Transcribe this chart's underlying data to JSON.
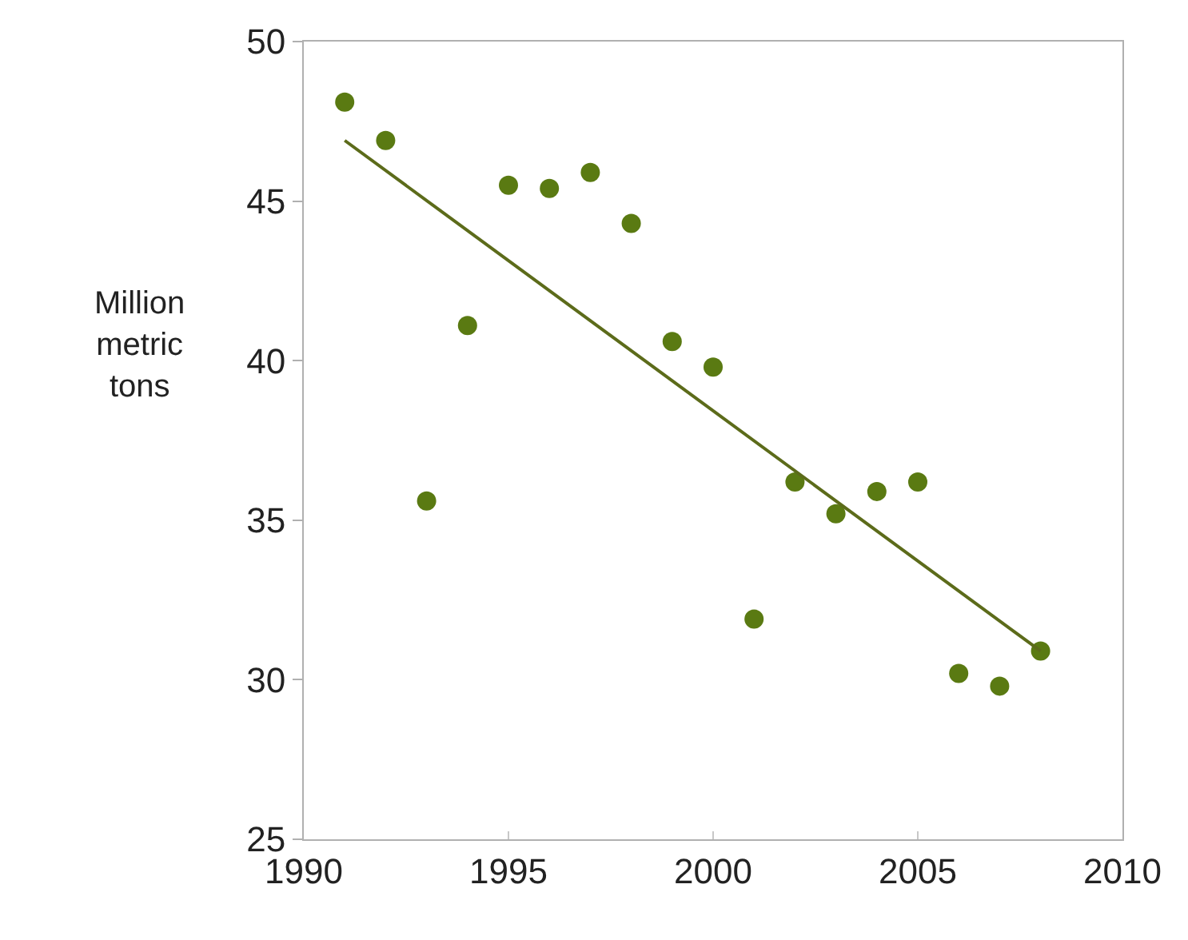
{
  "chart_data": {
    "type": "scatter",
    "ylabel": "Million\nmetric\ntons",
    "x": [
      1991,
      1992,
      1993,
      1994,
      1995,
      1996,
      1997,
      1998,
      1999,
      2000,
      2001,
      2002,
      2003,
      2004,
      2005,
      2006,
      2007,
      2008
    ],
    "series": [
      {
        "color": "#5a7a12",
        "marker": "circle",
        "values": [
          48.1,
          46.9,
          35.6,
          41.1,
          45.5,
          45.4,
          45.9,
          44.3,
          40.6,
          39.8,
          31.9,
          36.2,
          35.2,
          35.9,
          36.2,
          30.2,
          29.8,
          30.9
        ]
      },
      {
        "type": "line",
        "color": "#5c6b1a",
        "x": [
          1991,
          2008
        ],
        "values": [
          46.9,
          30.9
        ]
      }
    ],
    "xlim": [
      1990,
      2010
    ],
    "xticks": [
      1990,
      1995,
      2000,
      2005,
      2010
    ],
    "ylim": [
      25,
      50
    ],
    "yticks": [
      25,
      30,
      35,
      40,
      45,
      50
    ]
  }
}
